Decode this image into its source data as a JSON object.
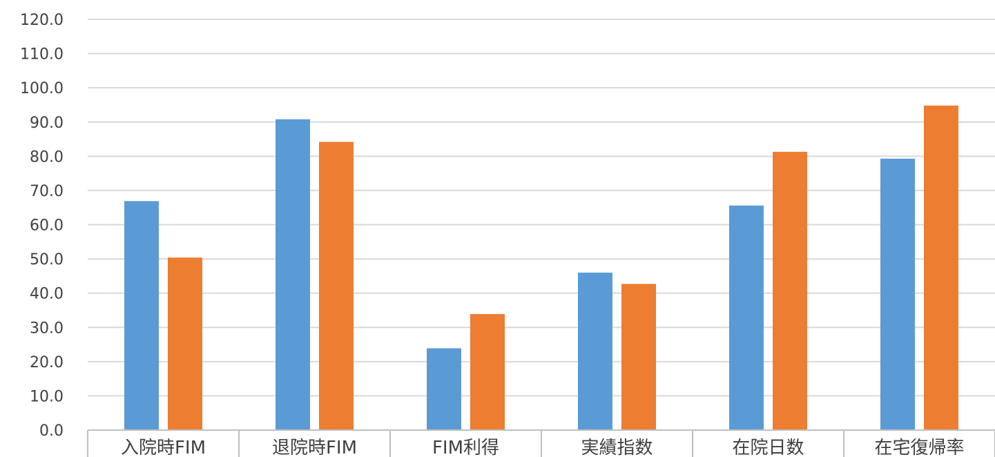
{
  "chart_data": {
    "type": "bar",
    "categories": [
      "入院時FIM",
      "退院時FIM",
      "FIM利得",
      "実績指数",
      "在院日数",
      "在宅復帰率"
    ],
    "series": [
      {
        "values": [
          66.9,
          90.8,
          23.9,
          46.0,
          65.6,
          79.3
        ],
        "color": "#5b9bd5"
      },
      {
        "values": [
          50.4,
          84.2,
          33.9,
          42.7,
          81.3,
          94.8
        ],
        "color": "#ed7d31"
      }
    ],
    "title": "",
    "xlabel": "",
    "ylabel": "",
    "ylim": [
      0,
      120
    ],
    "yticks": [
      "0.0",
      "10.0",
      "20.0",
      "30.0",
      "40.0",
      "50.0",
      "60.0",
      "70.0",
      "80.0",
      "90.0",
      "100.0",
      "110.0",
      "120.0"
    ],
    "grid": true,
    "legend": "none"
  }
}
